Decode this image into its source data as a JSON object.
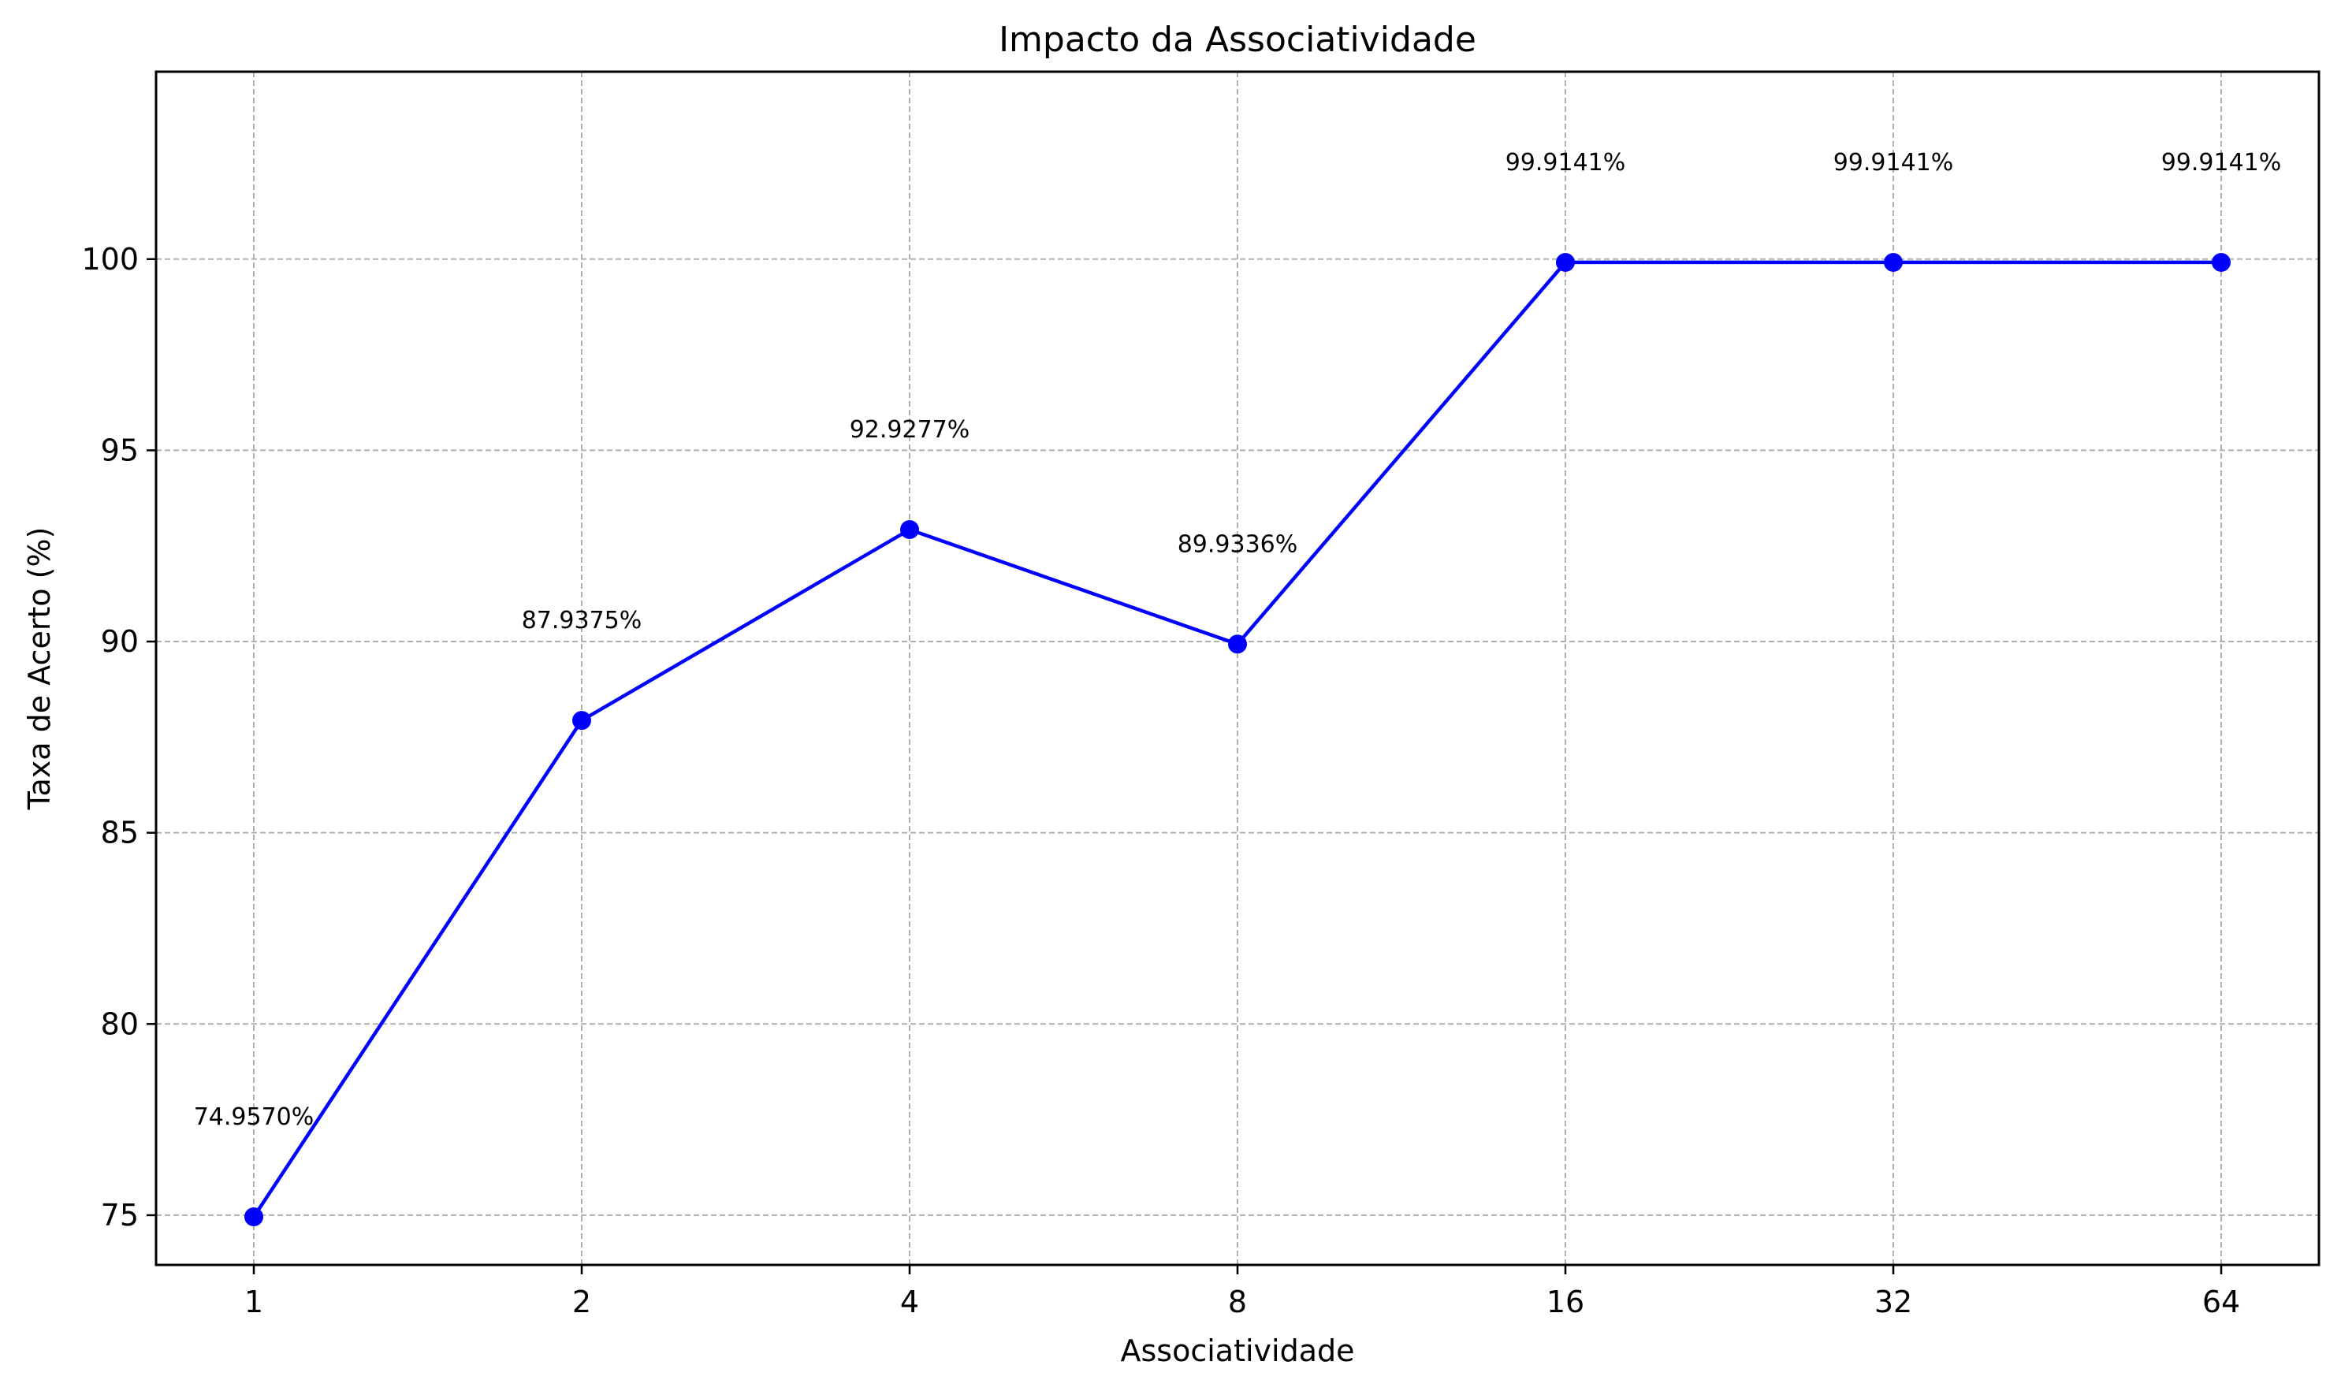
{
  "chart_data": {
    "type": "line",
    "title": "Impacto da Associatividade",
    "xlabel": "Associatividade",
    "ylabel": "Taxa de Acerto (%)",
    "categories": [
      "1",
      "2",
      "4",
      "8",
      "16",
      "32",
      "64"
    ],
    "series": [
      {
        "values": [
          74.957,
          87.9375,
          92.9277,
          89.9336,
          99.9141,
          99.9141,
          99.9141
        ],
        "labels": [
          "74.9570%",
          "87.9375%",
          "92.9277%",
          "89.9336%",
          "99.9141%",
          "99.9141%",
          "99.9141%"
        ],
        "color": "#0000ff",
        "marker": "circle"
      }
    ],
    "yticks": [
      75,
      80,
      85,
      90,
      95,
      100
    ],
    "ytick_labels": [
      "75",
      "80",
      "85",
      "90",
      "95",
      "100"
    ],
    "ylim": [
      73.7,
      104.9
    ],
    "grid": true,
    "legend": "none"
  }
}
